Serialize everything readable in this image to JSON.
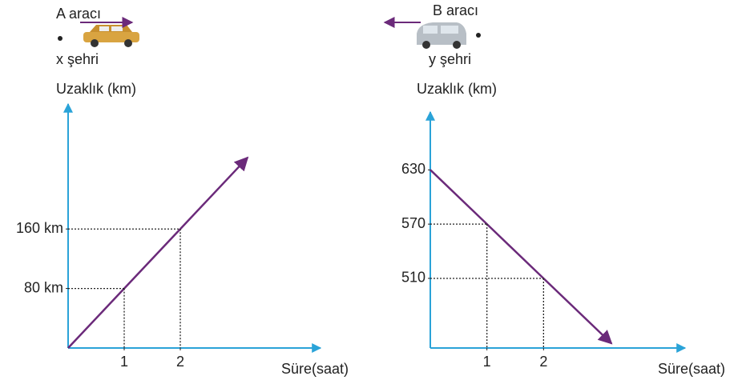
{
  "chart_data": [
    {
      "type": "line",
      "vehicle": "A aracı",
      "city": "x şehri",
      "ylabel": "Uzaklık (km)",
      "xlabel": "Süre(saat)",
      "x": [
        0,
        1,
        2
      ],
      "series": [
        {
          "color": "#6b2a7a",
          "values": [
            0,
            80,
            160
          ]
        }
      ],
      "xlim": [
        0,
        4.5
      ],
      "ylim": [
        0,
        328
      ],
      "xticks": [
        1,
        2
      ],
      "yticks": [
        {
          "value": 80,
          "label": "80 km"
        },
        {
          "value": 160,
          "label": "160 km"
        }
      ],
      "direction": "right"
    },
    {
      "type": "line",
      "vehicle": "B aracı",
      "city": "y şehri",
      "ylabel": "Uzaklık (km)",
      "xlabel": "Süre(saat)",
      "x": [
        0,
        1,
        2
      ],
      "series": [
        {
          "color": "#6b2a7a",
          "values": [
            630,
            570,
            510
          ]
        }
      ],
      "xlim": [
        0,
        4.5
      ],
      "ylim": [
        433,
        694
      ],
      "xticks": [
        1,
        2
      ],
      "yticks": [
        510,
        570,
        630
      ],
      "direction": "left"
    }
  ]
}
